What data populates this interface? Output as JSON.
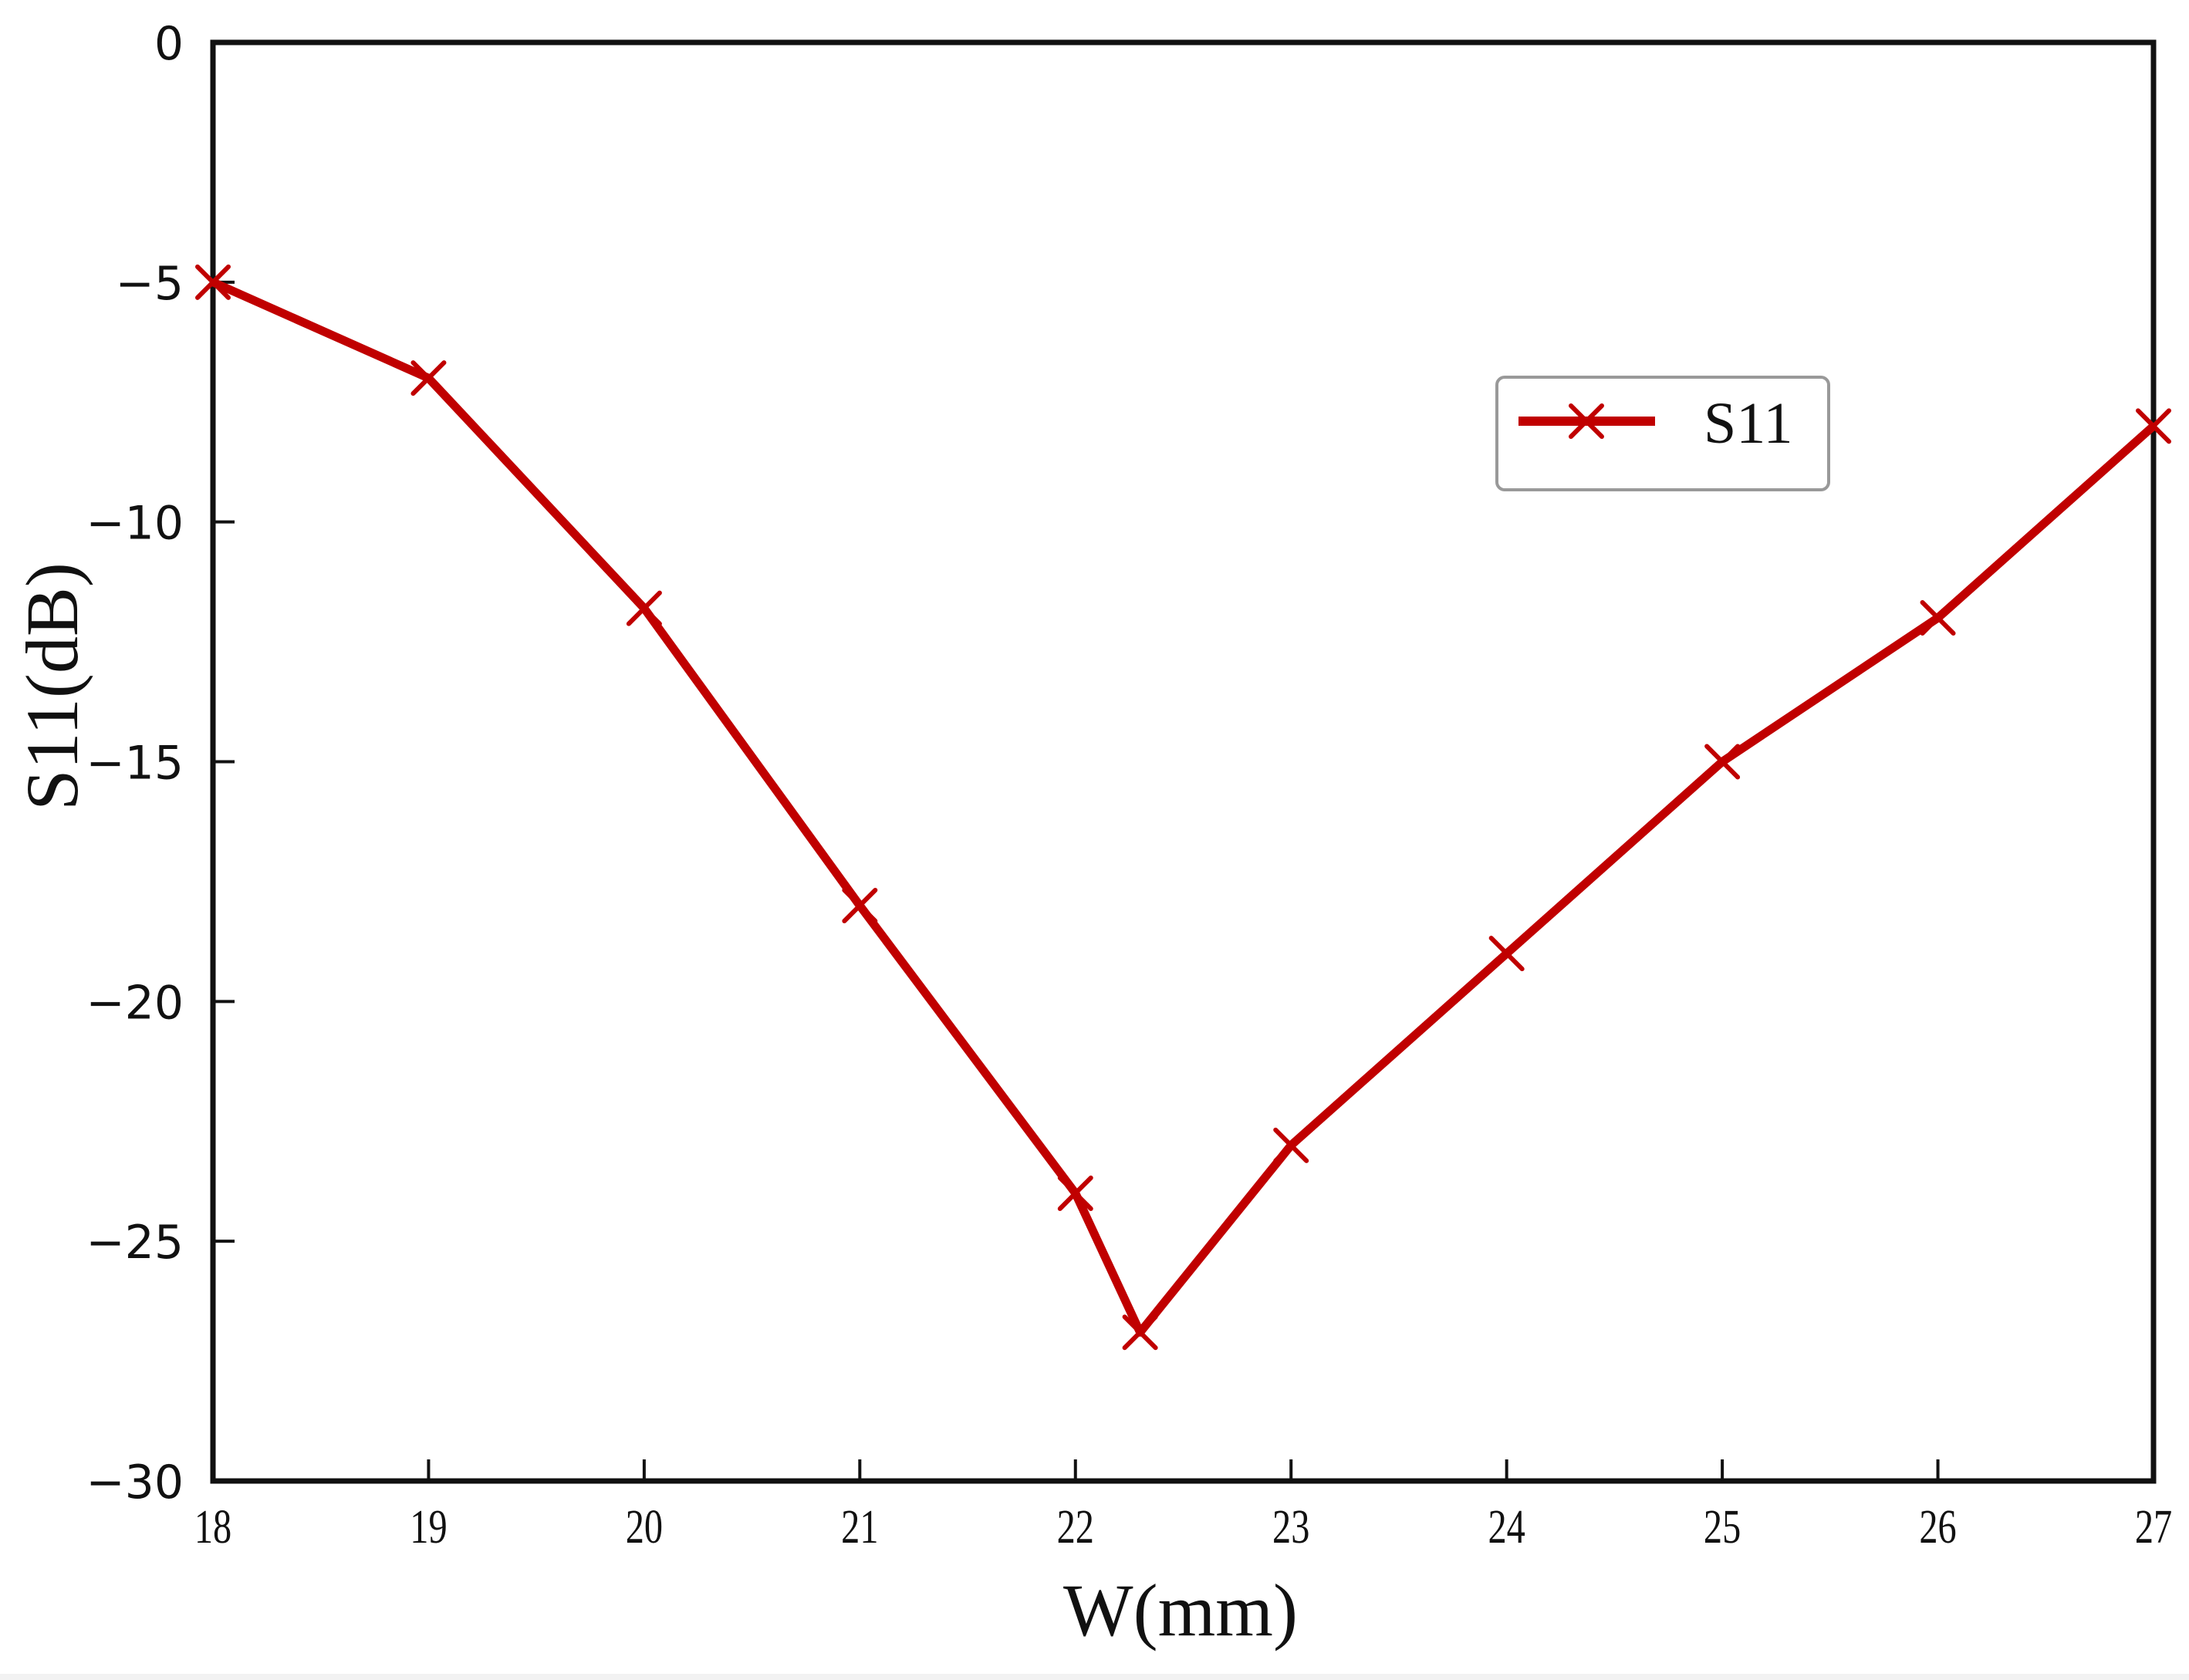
{
  "chart_data": {
    "type": "line",
    "title": "",
    "xlabel": "W(mm)",
    "ylabel": "S11(dB)",
    "xlim": [
      18,
      27
    ],
    "ylim": [
      -30,
      0
    ],
    "x_ticks": [
      "18",
      "19",
      "20",
      "21",
      "22",
      "23",
      "24",
      "25",
      "26",
      "27"
    ],
    "y_ticks": [
      "0",
      "−5",
      "−10",
      "−15",
      "−20",
      "−25",
      "−30"
    ],
    "grid": false,
    "legend_position": "upper right (inside)",
    "series": [
      {
        "name": "S11",
        "color": "#C00000",
        "marker": "x",
        "x": [
          18,
          19,
          20,
          21,
          22,
          22.3,
          23,
          24,
          25,
          26,
          27
        ],
        "values": [
          -5,
          -7,
          -11.8,
          -18,
          -24,
          -26.9,
          -23,
          -19,
          -15,
          -12,
          -8
        ]
      }
    ]
  },
  "axes": {
    "xlabel": "W(mm)",
    "ylabel": "S11(dB)"
  },
  "legend": {
    "entries": [
      {
        "label": "S11",
        "color": "#C00000",
        "marker": "x"
      }
    ]
  }
}
